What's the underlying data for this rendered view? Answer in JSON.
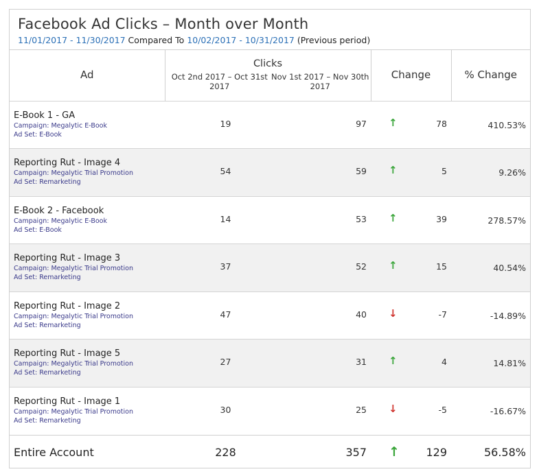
{
  "report": {
    "title": "Facebook Ad Clicks – Month over Month",
    "current_range": "11/01/2017 - 11/30/2017",
    "compared_to": "Compared To",
    "previous_range": "10/02/2017 - 10/31/2017",
    "previous_label": "(Previous period)"
  },
  "columns": {
    "ad": "Ad",
    "clicks": "Clicks",
    "oct": "Oct 2nd 2017 – Oct 31st 2017",
    "nov": "Nov 1st 2017 – Nov 30th 2017",
    "change": "Change",
    "pct": "% Change"
  },
  "rows": [
    {
      "name": "E-Book 1 - GA",
      "campaign": "Campaign: Megalytic E-Book",
      "adset": "Ad Set: E-Book",
      "oct": "19",
      "nov": "97",
      "dir": "up",
      "change": "78",
      "pct": "410.53%"
    },
    {
      "name": "Reporting Rut - Image 4",
      "campaign": "Campaign: Megalytic Trial Promotion",
      "adset": "Ad Set: Remarketing",
      "oct": "54",
      "nov": "59",
      "dir": "up",
      "change": "5",
      "pct": "9.26%"
    },
    {
      "name": "E-Book 2 - Facebook",
      "campaign": "Campaign: Megalytic E-Book",
      "adset": "Ad Set: E-Book",
      "oct": "14",
      "nov": "53",
      "dir": "up",
      "change": "39",
      "pct": "278.57%"
    },
    {
      "name": "Reporting Rut - Image 3",
      "campaign": "Campaign: Megalytic Trial Promotion",
      "adset": "Ad Set: Remarketing",
      "oct": "37",
      "nov": "52",
      "dir": "up",
      "change": "15",
      "pct": "40.54%"
    },
    {
      "name": "Reporting Rut - Image 2",
      "campaign": "Campaign: Megalytic Trial Promotion",
      "adset": "Ad Set: Remarketing",
      "oct": "47",
      "nov": "40",
      "dir": "down",
      "change": "-7",
      "pct": "-14.89%"
    },
    {
      "name": "Reporting Rut - Image 5",
      "campaign": "Campaign: Megalytic Trial Promotion",
      "adset": "Ad Set: Remarketing",
      "oct": "27",
      "nov": "31",
      "dir": "up",
      "change": "4",
      "pct": "14.81%"
    },
    {
      "name": "Reporting Rut - Image 1",
      "campaign": "Campaign: Megalytic Trial Promotion",
      "adset": "Ad Set: Remarketing",
      "oct": "30",
      "nov": "25",
      "dir": "down",
      "change": "-5",
      "pct": "-16.67%"
    }
  ],
  "total": {
    "name": "Entire Account",
    "oct": "228",
    "nov": "357",
    "dir": "up",
    "change": "129",
    "pct": "56.58%"
  },
  "colors": {
    "up": "#3aa53a",
    "down": "#d0352f",
    "link": "#2a6fb6"
  },
  "icons": {
    "up": "arrow-up-icon",
    "down": "arrow-down-icon"
  }
}
